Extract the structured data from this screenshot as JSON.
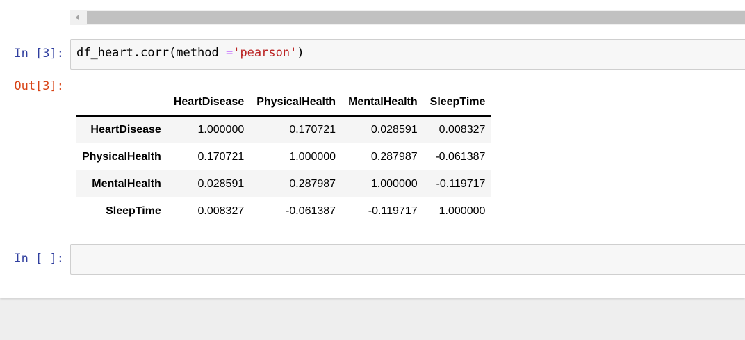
{
  "cell3": {
    "in_prompt": "In [3]:",
    "code": {
      "obj": "df_heart.corr(",
      "param": "method ",
      "op": "=",
      "str": "'pearson'",
      "close": ")"
    },
    "out_prompt": "Out[3]:"
  },
  "table": {
    "columns": [
      "",
      "HeartDisease",
      "PhysicalHealth",
      "MentalHealth",
      "SleepTime"
    ],
    "rows": [
      {
        "label": "HeartDisease",
        "values": [
          "1.000000",
          "0.170721",
          "0.028591",
          "0.008327"
        ]
      },
      {
        "label": "PhysicalHealth",
        "values": [
          "0.170721",
          "1.000000",
          "0.287987",
          "-0.061387"
        ]
      },
      {
        "label": "MentalHealth",
        "values": [
          "0.028591",
          "0.287987",
          "1.000000",
          "-0.119717"
        ]
      },
      {
        "label": "SleepTime",
        "values": [
          "0.008327",
          "-0.061387",
          "-0.119717",
          "1.000000"
        ]
      }
    ]
  },
  "cell4": {
    "in_prompt": "In [ ]:",
    "code": ""
  },
  "icons": {
    "scroll_left": "scroll-left-arrow-icon"
  },
  "colors": {
    "in_prompt": "#303f9f",
    "out_prompt": "#d84315",
    "string": "#ba2121",
    "operator": "#aa22ff"
  }
}
